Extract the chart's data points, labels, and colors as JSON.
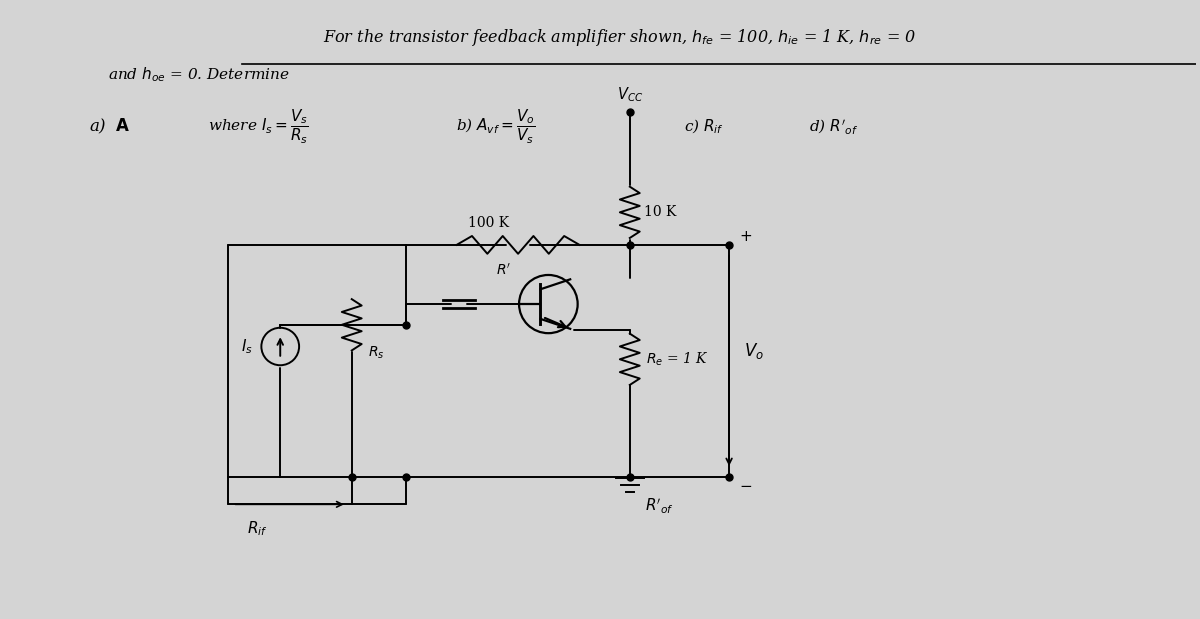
{
  "bg_color": "#d4d4d4",
  "figsize": [
    12.0,
    6.19
  ],
  "dpi": 100,
  "title": "For the transistor feedback amplifier shown, $h_{fe}$ = 100, $h_{ie}$ = 1 K, $h_{re}$ = 0",
  "line2": "and $h_{oe}$ = 0. Determine",
  "item_a": "a)  $\\mathbf{A}$",
  "item_a2": "where $I_s = \\dfrac{V_s}{R_s}$",
  "item_b": "b) $A_{vf} = \\dfrac{V_o}{V_s}$",
  "item_c": "c) $R_{if}$",
  "item_d": "d) $R^{\\prime}_{of}$"
}
